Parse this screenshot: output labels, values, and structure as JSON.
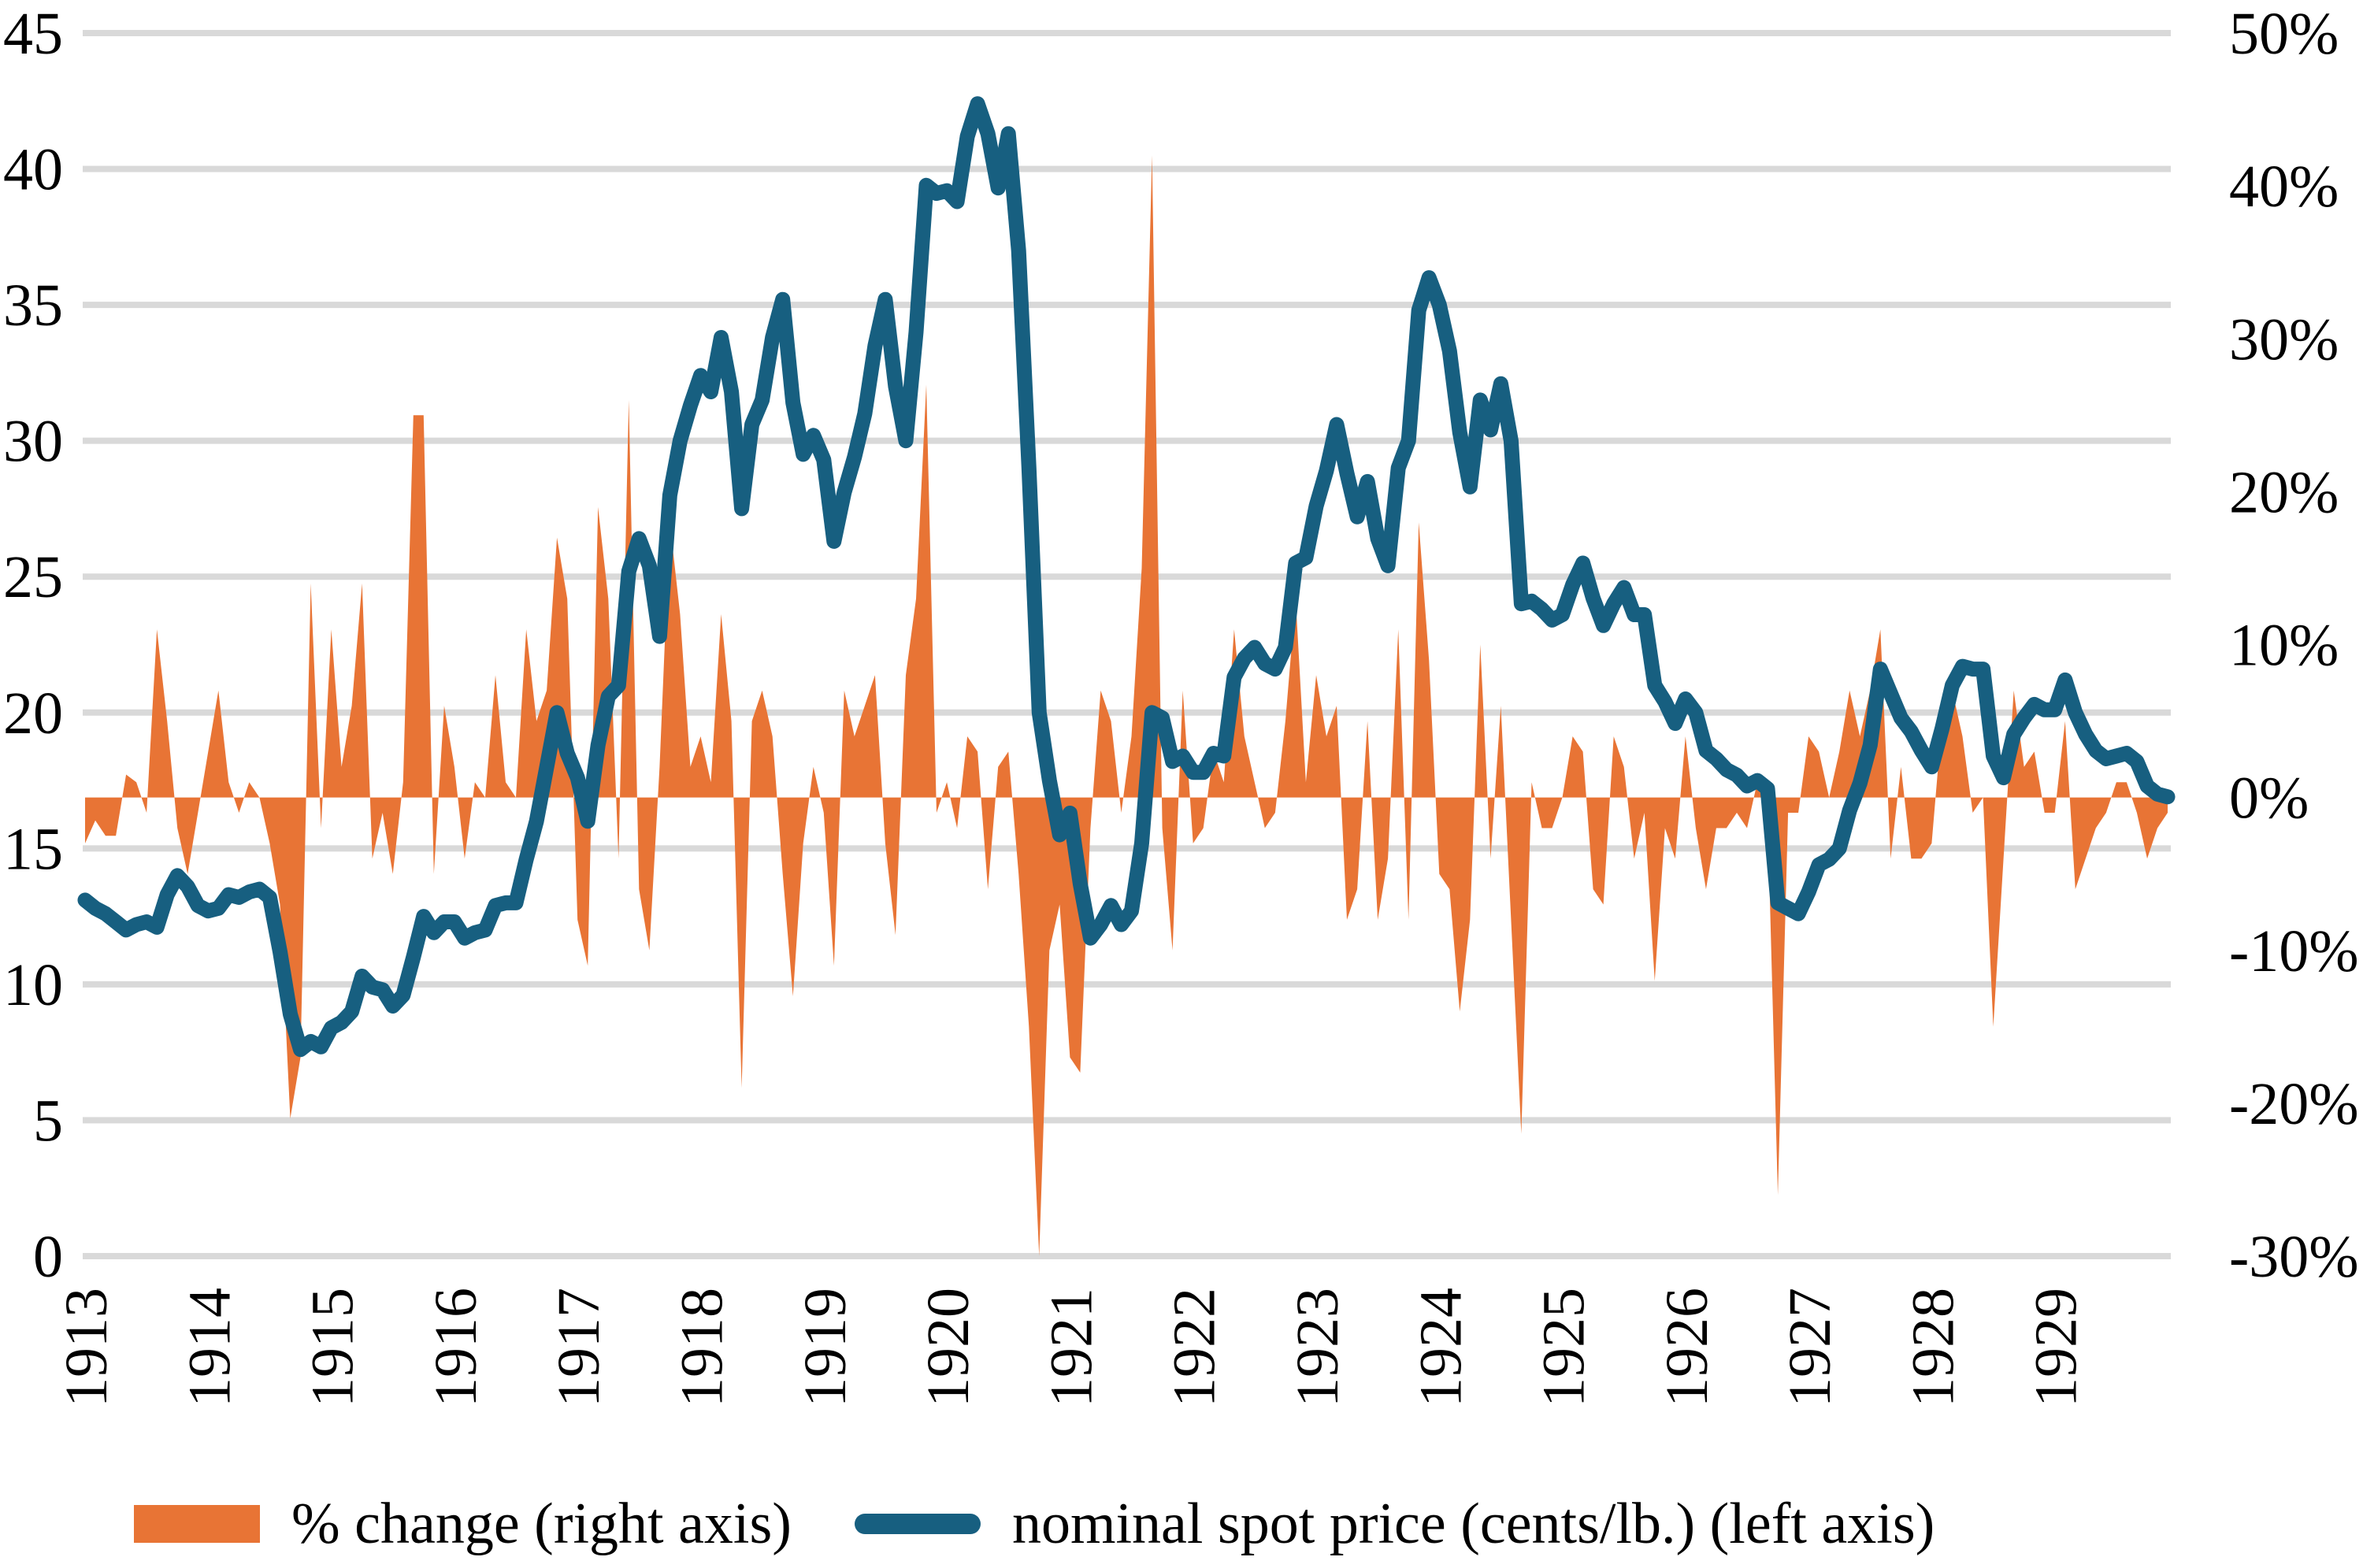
{
  "chart_data": {
    "type": "line+area",
    "title": "",
    "xlabel": "",
    "ylabel_left": "",
    "ylabel_right": "",
    "colors": {
      "line": "#175f80",
      "area": "#e87435",
      "grid": "#d9d9d9",
      "text": "#000000"
    },
    "x_ticks": [
      "1913",
      "1914",
      "1915",
      "1916",
      "1917",
      "1918",
      "1919",
      "1920",
      "1921",
      "1922",
      "1923",
      "1924",
      "1925",
      "1926",
      "1927",
      "1928",
      "1929"
    ],
    "x_range": [
      "1913-01",
      "1929-12"
    ],
    "frequency": "monthly",
    "left_axis": {
      "ylim": [
        0,
        45
      ],
      "ticks": [
        "0",
        "5",
        "10",
        "15",
        "20",
        "25",
        "30",
        "35",
        "40",
        "45"
      ]
    },
    "right_axis": {
      "ylim": [
        -30,
        50
      ],
      "ticks": [
        "-30%",
        "-20%",
        "-10%",
        "0%",
        "10%",
        "20%",
        "30%",
        "40%",
        "50%"
      ]
    },
    "grid": true,
    "legend_position": "bottom",
    "series": [
      {
        "name": "% change (right axis)",
        "type": "area",
        "axis": "right",
        "unit": "%",
        "values": [
          -3,
          -1.5,
          -2.5,
          -2.5,
          1.5,
          1,
          -1,
          11,
          5,
          -2,
          -5,
          -1,
          3,
          7,
          1,
          -1,
          1,
          0,
          -3,
          -7,
          -21,
          -17,
          14,
          -2,
          11,
          2,
          6,
          14,
          -4,
          -1,
          -5,
          1,
          25,
          25,
          -5,
          6,
          2,
          -4,
          1,
          0,
          8,
          1,
          0,
          11,
          5,
          7,
          17,
          13,
          -8,
          -11,
          19,
          13,
          -4,
          26,
          -6,
          -10,
          2,
          18,
          12,
          2,
          4,
          1,
          12,
          5,
          -19,
          5,
          7,
          4,
          -5,
          -13,
          -3,
          2,
          -1,
          -11,
          7,
          4,
          6,
          8,
          -3,
          -9,
          8,
          13,
          27,
          -1,
          1,
          -2,
          4,
          3,
          -6,
          2,
          3,
          -5,
          -15,
          -30,
          -10,
          -7,
          -17,
          -18,
          -2,
          7,
          5,
          -1,
          4,
          15,
          42,
          -2,
          -10,
          7,
          -3,
          -2,
          3,
          1,
          11,
          4,
          1,
          -2,
          -1,
          5,
          13,
          1,
          8,
          4,
          6,
          -8,
          -6,
          5,
          -8,
          -4,
          11,
          -8,
          18,
          9,
          -5,
          -6,
          -14,
          -8,
          10,
          -4,
          6,
          -8,
          -22,
          1,
          -2,
          -2,
          0,
          4,
          3,
          -6,
          -7,
          4,
          2,
          -4,
          -1,
          -12,
          -2,
          -4,
          4,
          -2,
          -6,
          -2,
          -2,
          -1,
          -2,
          1,
          -1,
          -26,
          -1,
          -1,
          4,
          3,
          0,
          3,
          7,
          4,
          7,
          11,
          -4,
          2,
          -4,
          -4,
          -3,
          5,
          7,
          4,
          -1,
          0,
          -15,
          -4,
          7,
          2,
          3,
          -1,
          -1,
          5,
          -6,
          -4,
          -2,
          -1,
          1,
          1,
          -1,
          -4,
          -2,
          -1
        ]
      },
      {
        "name": "nominal spot price (cents/lb.) (left axis)",
        "type": "line",
        "axis": "left",
        "unit": "cents/lb.",
        "values": [
          13.1,
          12.8,
          12.6,
          12.3,
          12.0,
          12.2,
          12.3,
          12.1,
          13.3,
          14.0,
          13.6,
          12.9,
          12.7,
          12.8,
          13.3,
          13.2,
          13.4,
          13.5,
          13.2,
          11.2,
          8.9,
          7.6,
          7.9,
          7.7,
          8.4,
          8.6,
          9.0,
          10.3,
          9.9,
          9.8,
          9.2,
          9.6,
          11.0,
          12.5,
          11.9,
          12.3,
          12.3,
          11.7,
          11.9,
          12.0,
          12.9,
          13.0,
          13.0,
          14.6,
          16.0,
          18.0,
          20.0,
          18.5,
          17.6,
          16.0,
          18.8,
          20.6,
          21.0,
          25.2,
          26.4,
          25.4,
          22.8,
          28.0,
          30.0,
          31.3,
          32.4,
          31.8,
          33.8,
          31.8,
          27.5,
          30.6,
          31.5,
          33.8,
          35.2,
          31.4,
          29.5,
          30.2,
          29.3,
          26.3,
          28.1,
          29.4,
          31.0,
          33.5,
          35.2,
          32.0,
          30.0,
          34.0,
          39.4,
          39.1,
          39.2,
          38.8,
          41.2,
          42.4,
          41.3,
          39.3,
          41.3,
          37.0,
          29.0,
          20.0,
          17.5,
          15.5,
          16.3,
          13.7,
          11.7,
          12.2,
          12.9,
          12.2,
          12.7,
          15.2,
          20.0,
          19.8,
          18.2,
          18.4,
          17.8,
          17.8,
          18.5,
          18.4,
          21.3,
          22.0,
          22.4,
          21.8,
          21.6,
          22.4,
          25.5,
          25.7,
          27.6,
          28.9,
          30.6,
          28.8,
          27.2,
          28.5,
          26.4,
          25.4,
          29.0,
          30.0,
          34.8,
          36.0,
          35.0,
          33.3,
          30.3,
          28.3,
          31.5,
          30.4,
          32.1,
          30.0,
          24.0,
          24.1,
          23.8,
          23.4,
          23.6,
          24.7,
          25.5,
          24.2,
          23.2,
          24.0,
          24.6,
          23.6,
          23.6,
          21.0,
          20.4,
          19.6,
          20.5,
          20.0,
          18.6,
          18.3,
          17.9,
          17.7,
          17.3,
          17.5,
          17.2,
          13.0,
          12.8,
          12.6,
          13.4,
          14.4,
          14.6,
          15.0,
          16.4,
          17.4,
          18.8,
          21.6,
          20.7,
          19.8,
          19.3,
          18.6,
          18.0,
          19.4,
          21.0,
          21.7,
          21.6,
          21.6,
          18.4,
          17.6,
          19.2,
          19.8,
          20.3,
          20.1,
          20.1,
          21.2,
          20.0,
          19.2,
          18.6,
          18.3,
          18.4,
          18.5,
          18.2,
          17.3,
          17.0,
          16.9
        ]
      }
    ]
  },
  "legend": {
    "items": [
      {
        "label": "% change (right axis)",
        "color": "#e87435",
        "shape": "area-swatch"
      },
      {
        "label": "nominal spot price (cents/lb.) (left axis)",
        "color": "#175f80",
        "shape": "line-swatch"
      }
    ]
  }
}
